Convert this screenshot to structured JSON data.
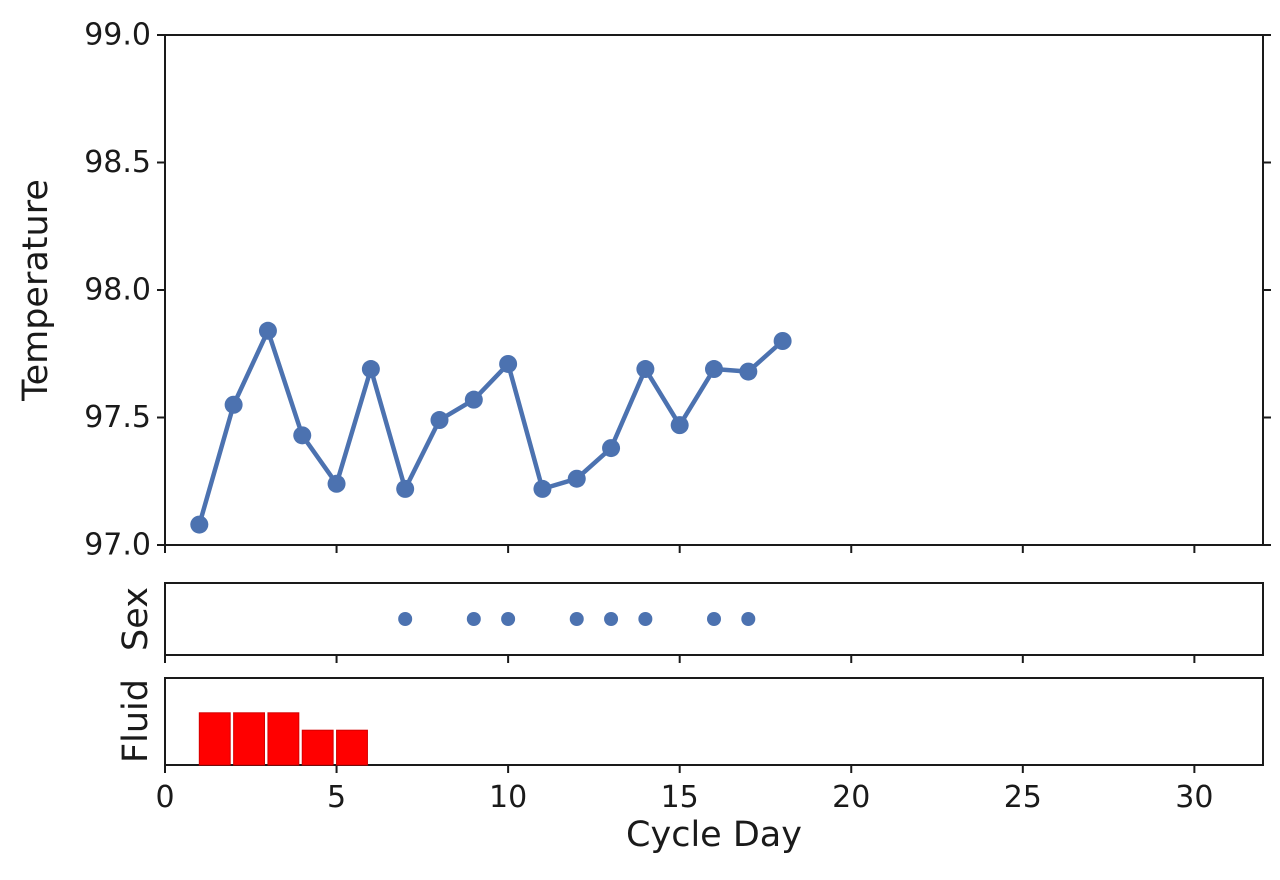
{
  "figure": {
    "background": "#ffffff",
    "axis_color": "#1a1a1a"
  },
  "chart_data": {
    "type": "line",
    "description": "Fertility tracking chart with three stacked panels sharing a Cycle Day x-axis",
    "xlabel": "Cycle Day",
    "xlim": [
      0,
      32
    ],
    "xticks": [
      0,
      5,
      10,
      15,
      20,
      25,
      30
    ],
    "xtick_labels": [
      "0",
      "5",
      "10",
      "15",
      "20",
      "25",
      "30"
    ],
    "grid": false,
    "legend": "none",
    "panels": [
      {
        "name": "temperature",
        "type": "line",
        "ylabel": "Temperature",
        "ylim": [
          97.0,
          99.0
        ],
        "yticks": [
          97.0,
          97.5,
          98.0,
          98.5,
          99.0
        ],
        "ytick_labels": [
          "97.0",
          "97.5",
          "98.0",
          "98.5",
          "99.0"
        ],
        "x": [
          1,
          2,
          3,
          4,
          5,
          6,
          7,
          8,
          9,
          10,
          11,
          12,
          13,
          14,
          15,
          16,
          17,
          18
        ],
        "y": [
          97.08,
          97.55,
          97.84,
          97.43,
          97.24,
          97.69,
          97.22,
          97.49,
          97.57,
          97.71,
          97.22,
          97.26,
          97.38,
          97.69,
          97.47,
          97.69,
          97.68,
          97.8
        ],
        "line_color": "#4c72b0",
        "marker": "circle"
      },
      {
        "name": "sex",
        "type": "scatter",
        "ylabel": "Sex",
        "x": [
          7,
          9,
          10,
          12,
          13,
          14,
          16,
          17
        ],
        "marker_color": "#4c72b0",
        "marker": "circle"
      },
      {
        "name": "fluid",
        "type": "bar",
        "ylabel": "Fluid",
        "ylim": [
          0,
          5
        ],
        "x": [
          1,
          2,
          3,
          4,
          5
        ],
        "values": [
          3,
          3,
          3,
          2,
          2
        ],
        "bar_color": "#ff0000",
        "bar_edge_color": "#d40000",
        "bar_width": 0.9,
        "bar_align": "edge"
      }
    ]
  }
}
